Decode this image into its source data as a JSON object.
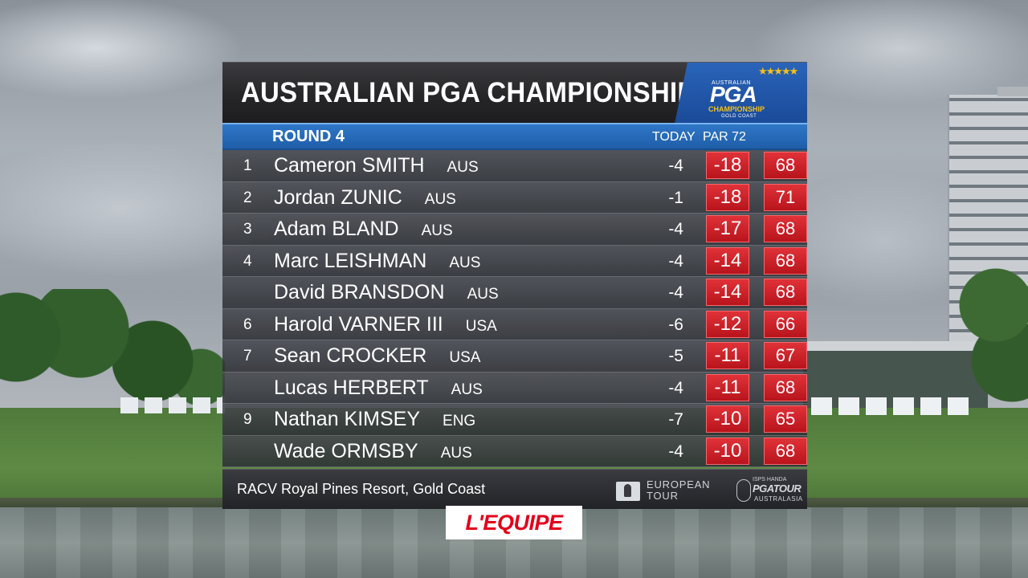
{
  "scoreboard": {
    "title": "AUSTRALIAN PGA CHAMPIONSHIP",
    "logo": {
      "small_text": "AUSTRALIAN",
      "main_text": "PGA",
      "sub_text": "CHAMPIONSHIP",
      "location_text": "GOLD COAST",
      "stars": "★★★★★"
    },
    "round_label": "ROUND 4",
    "today_label": "TODAY",
    "par_label": "PAR 72",
    "rows": [
      {
        "pos": "1",
        "name": "Cameron SMITH",
        "nat": "AUS",
        "today": "-4",
        "score": "-18",
        "round": "68"
      },
      {
        "pos": "2",
        "name": "Jordan ZUNIC",
        "nat": "AUS",
        "today": "-1",
        "score": "-18",
        "round": "71"
      },
      {
        "pos": "3",
        "name": "Adam BLAND",
        "nat": "AUS",
        "today": "-4",
        "score": "-17",
        "round": "68"
      },
      {
        "pos": "4",
        "name": "Marc LEISHMAN",
        "nat": "AUS",
        "today": "-4",
        "score": "-14",
        "round": "68"
      },
      {
        "pos": "",
        "name": "David BRANSDON",
        "nat": "AUS",
        "today": "-4",
        "score": "-14",
        "round": "68"
      },
      {
        "pos": "6",
        "name": "Harold VARNER III",
        "nat": "USA",
        "today": "-6",
        "score": "-12",
        "round": "66"
      },
      {
        "pos": "7",
        "name": "Sean CROCKER",
        "nat": "USA",
        "today": "-5",
        "score": "-11",
        "round": "67"
      },
      {
        "pos": "",
        "name": "Lucas HERBERT",
        "nat": "AUS",
        "today": "-4",
        "score": "-11",
        "round": "68"
      },
      {
        "pos": "9",
        "name": "Nathan KIMSEY",
        "nat": "ENG",
        "today": "-7",
        "score": "-10",
        "round": "65"
      },
      {
        "pos": "",
        "name": "Wade ORMSBY",
        "nat": "AUS",
        "today": "-4",
        "score": "-10",
        "round": "68"
      }
    ],
    "footer": {
      "venue": "RACV Royal Pines Resort, Gold Coast",
      "european_tour_line1": "EUROPEAN",
      "european_tour_line2": "TOUR",
      "pga_tour_sponsor": "ISPS HANDA",
      "pga_tour_main": "PGATOUR",
      "pga_tour_sub": "AUSTRALASIA"
    }
  },
  "broadcaster": {
    "logo_text": "L'EQUIPE"
  },
  "colors": {
    "score_red": "#c8232a",
    "round_blue": "#2a6cbf",
    "lequipe_red": "#e2001a"
  }
}
